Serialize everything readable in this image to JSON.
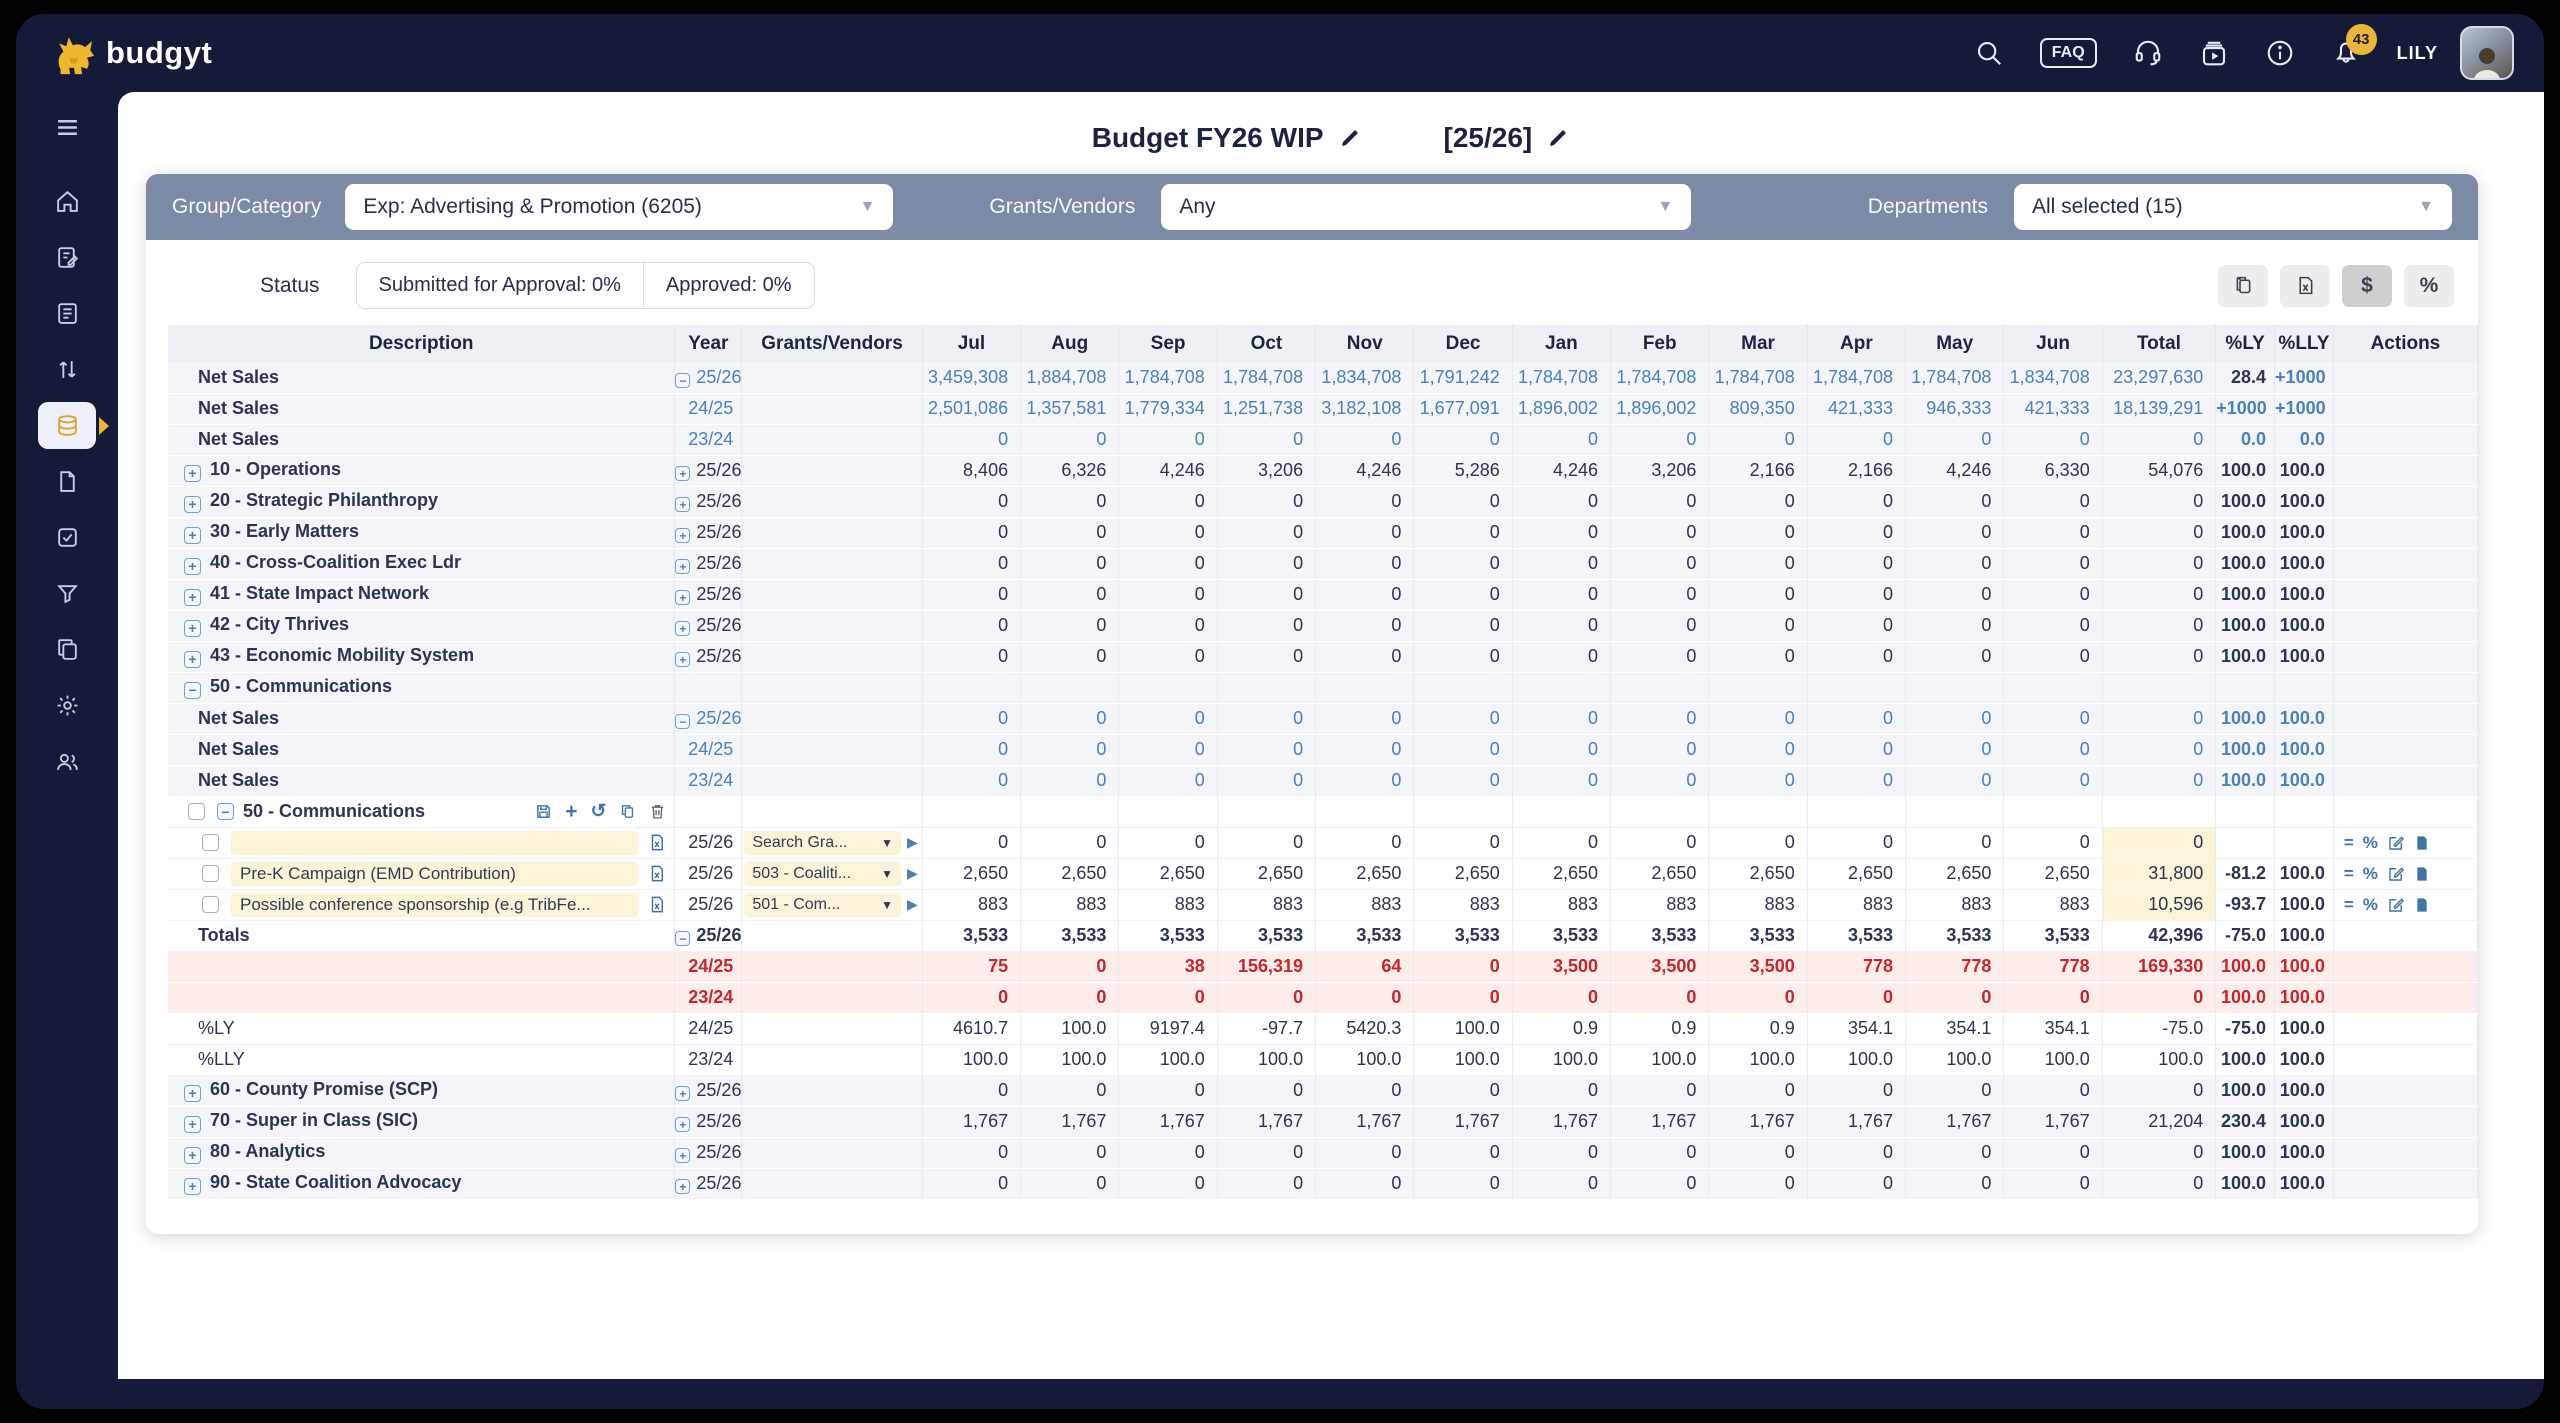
{
  "topbar": {
    "brand": "budgyt",
    "faq_label": "FAQ",
    "notification_count": "43",
    "user_name": "LILY"
  },
  "title": {
    "budget_name": "Budget FY26 WIP",
    "period_tag": "[25/26]"
  },
  "filters": {
    "group_category": {
      "label": "Group/Category",
      "value": "Exp: Advertising & Promotion (6205)"
    },
    "grants_vendors": {
      "label": "Grants/Vendors",
      "value": "Any"
    },
    "departments": {
      "label": "Departments",
      "value": "All selected (15)"
    }
  },
  "status": {
    "label": "Status",
    "submitted": "Submitted for Approval: 0%",
    "approved": "Approved: 0%"
  },
  "view_toggle": {
    "dollar": "$",
    "percent": "%"
  },
  "sidebar": {
    "icons": [
      "menu-icon",
      "home-icon",
      "form-edit-icon",
      "report-icon",
      "transfer-arrows-icon",
      "budgets-layers-icon",
      "file-icon",
      "approvals-check-icon",
      "filter-icon",
      "copy-docs-icon",
      "settings-gear-icon",
      "users-icon"
    ],
    "active": "budgets-layers-icon"
  },
  "colors": {
    "navy": "#151a38",
    "gold": "#eab53a",
    "filterbar": "#7d8aa6",
    "blue_value": "#4b80b8",
    "red_value": "#c1272d",
    "cream_input": "#fbf3d8"
  },
  "table": {
    "columns": [
      "Description",
      "Year",
      "Grants/Vendors",
      "Jul",
      "Aug",
      "Sep",
      "Oct",
      "Nov",
      "Dec",
      "Jan",
      "Feb",
      "Mar",
      "Apr",
      "May",
      "Jun",
      "Total",
      "%LY",
      "%LLY",
      "Actions"
    ],
    "rows": [
      {
        "kind": "netsales",
        "desc": "Net Sales",
        "year": "25/26",
        "year_expander": "minus",
        "year_color": "blue",
        "vals": [
          "3,459,308",
          "1,884,708",
          "1,784,708",
          "1,784,708",
          "1,834,708",
          "1,791,242",
          "1,784,708",
          "1,784,708",
          "1,784,708",
          "1,784,708",
          "1,784,708",
          "1,834,708"
        ],
        "total": "23,297,630",
        "ly": "28.4",
        "lly": "+1000",
        "val_color": "blue",
        "ly_color": "dark",
        "lly_color": "blue",
        "bg": "gray"
      },
      {
        "kind": "netsales",
        "desc": "Net Sales",
        "year": "24/25",
        "year_color": "blue",
        "vals": [
          "2,501,086",
          "1,357,581",
          "1,779,334",
          "1,251,738",
          "3,182,108",
          "1,677,091",
          "1,896,002",
          "1,896,002",
          "809,350",
          "421,333",
          "946,333",
          "421,333"
        ],
        "total": "18,139,291",
        "ly": "+1000",
        "lly": "+1000",
        "val_color": "blue",
        "ly_color": "blue",
        "lly_color": "blue",
        "bg": "gray"
      },
      {
        "kind": "netsales",
        "desc": "Net Sales",
        "year": "23/24",
        "year_color": "blue",
        "vals": [
          "0",
          "0",
          "0",
          "0",
          "0",
          "0",
          "0",
          "0",
          "0",
          "0",
          "0",
          "0"
        ],
        "total": "0",
        "ly": "0.0",
        "lly": "0.0",
        "val_color": "blue",
        "ly_color": "blue",
        "lly_color": "blue",
        "bg": "gray"
      },
      {
        "kind": "category",
        "desc": "10 - Operations",
        "expander": "plus",
        "year": "25/26",
        "year_expander": "plus",
        "year_color": "dark",
        "vals": [
          "8,406",
          "6,326",
          "4,246",
          "3,206",
          "4,246",
          "5,286",
          "4,246",
          "3,206",
          "2,166",
          "2,166",
          "4,246",
          "6,330"
        ],
        "total": "54,076",
        "ly": "100.0",
        "lly": "100.0",
        "val_color": "dark",
        "ly_color": "dark",
        "lly_color": "dark",
        "bg": "gray"
      },
      {
        "kind": "category",
        "desc": "20 - Strategic Philanthropy",
        "expander": "plus",
        "year": "25/26",
        "year_expander": "plus",
        "year_color": "dark",
        "vals": [
          "0",
          "0",
          "0",
          "0",
          "0",
          "0",
          "0",
          "0",
          "0",
          "0",
          "0",
          "0"
        ],
        "total": "0",
        "ly": "100.0",
        "lly": "100.0",
        "val_color": "dark",
        "ly_color": "dark",
        "lly_color": "dark",
        "bg": "gray"
      },
      {
        "kind": "category",
        "desc": "30 - Early Matters",
        "expander": "plus",
        "year": "25/26",
        "year_expander": "plus",
        "year_color": "dark",
        "vals": [
          "0",
          "0",
          "0",
          "0",
          "0",
          "0",
          "0",
          "0",
          "0",
          "0",
          "0",
          "0"
        ],
        "total": "0",
        "ly": "100.0",
        "lly": "100.0",
        "val_color": "dark",
        "ly_color": "dark",
        "lly_color": "dark",
        "bg": "gray"
      },
      {
        "kind": "category",
        "desc": "40 - Cross-Coalition Exec Ldr",
        "expander": "plus",
        "year": "25/26",
        "year_expander": "plus",
        "year_color": "dark",
        "vals": [
          "0",
          "0",
          "0",
          "0",
          "0",
          "0",
          "0",
          "0",
          "0",
          "0",
          "0",
          "0"
        ],
        "total": "0",
        "ly": "100.0",
        "lly": "100.0",
        "val_color": "dark",
        "ly_color": "dark",
        "lly_color": "dark",
        "bg": "gray"
      },
      {
        "kind": "category",
        "desc": "41 - State Impact Network",
        "expander": "plus",
        "year": "25/26",
        "year_expander": "plus",
        "year_color": "dark",
        "vals": [
          "0",
          "0",
          "0",
          "0",
          "0",
          "0",
          "0",
          "0",
          "0",
          "0",
          "0",
          "0"
        ],
        "total": "0",
        "ly": "100.0",
        "lly": "100.0",
        "val_color": "dark",
        "ly_color": "dark",
        "lly_color": "dark",
        "bg": "gray"
      },
      {
        "kind": "category",
        "desc": "42 - City Thrives",
        "expander": "plus",
        "year": "25/26",
        "year_expander": "plus",
        "year_color": "dark",
        "vals": [
          "0",
          "0",
          "0",
          "0",
          "0",
          "0",
          "0",
          "0",
          "0",
          "0",
          "0",
          "0"
        ],
        "total": "0",
        "ly": "100.0",
        "lly": "100.0",
        "val_color": "dark",
        "ly_color": "dark",
        "lly_color": "dark",
        "bg": "gray"
      },
      {
        "kind": "category",
        "desc": "43 - Economic Mobility System",
        "expander": "plus",
        "year": "25/26",
        "year_expander": "plus",
        "year_color": "dark",
        "vals": [
          "0",
          "0",
          "0",
          "0",
          "0",
          "0",
          "0",
          "0",
          "0",
          "0",
          "0",
          "0"
        ],
        "total": "0",
        "ly": "100.0",
        "lly": "100.0",
        "val_color": "dark",
        "ly_color": "dark",
        "lly_color": "dark",
        "bg": "gray"
      },
      {
        "kind": "group-open",
        "desc": "50 - Communications",
        "expander": "minus",
        "bg": "gray"
      },
      {
        "kind": "netsales",
        "desc": "Net Sales",
        "year": "25/26",
        "year_expander": "minus",
        "year_color": "blue",
        "vals": [
          "0",
          "0",
          "0",
          "0",
          "0",
          "0",
          "0",
          "0",
          "0",
          "0",
          "0",
          "0"
        ],
        "total": "0",
        "ly": "100.0",
        "lly": "100.0",
        "val_color": "blue",
        "ly_color": "blue",
        "lly_color": "blue",
        "bg": "gray"
      },
      {
        "kind": "netsales",
        "desc": "Net Sales",
        "year": "24/25",
        "year_color": "blue",
        "vals": [
          "0",
          "0",
          "0",
          "0",
          "0",
          "0",
          "0",
          "0",
          "0",
          "0",
          "0",
          "0"
        ],
        "total": "0",
        "ly": "100.0",
        "lly": "100.0",
        "val_color": "blue",
        "ly_color": "blue",
        "lly_color": "blue",
        "bg": "gray"
      },
      {
        "kind": "netsales",
        "desc": "Net Sales",
        "year": "23/24",
        "year_color": "blue",
        "vals": [
          "0",
          "0",
          "0",
          "0",
          "0",
          "0",
          "0",
          "0",
          "0",
          "0",
          "0",
          "0"
        ],
        "total": "0",
        "ly": "100.0",
        "lly": "100.0",
        "val_color": "blue",
        "ly_color": "blue",
        "lly_color": "blue",
        "bg": "gray"
      },
      {
        "kind": "group-header",
        "desc": "50 - Communications",
        "expander": "minus",
        "checkbox": true,
        "toolbar": [
          "save-icon",
          "add-line-icon",
          "undo-icon",
          "paste-icon",
          "trash-icon"
        ],
        "bg": "white"
      },
      {
        "kind": "detail",
        "checkbox": true,
        "input": "",
        "grants": "Search Gra...",
        "year": "25/26",
        "vals": [
          "0",
          "0",
          "0",
          "0",
          "0",
          "0",
          "0",
          "0",
          "0",
          "0",
          "0",
          "0"
        ],
        "total": "0",
        "ly": "",
        "lly": "",
        "val_color": "dark",
        "ly_color": "dark",
        "lly_color": "dark",
        "bg": "white",
        "actions": true
      },
      {
        "kind": "detail",
        "checkbox": true,
        "input": "Pre-K Campaign (EMD Contribution)",
        "grants": "503 - Coaliti...",
        "year": "25/26",
        "vals": [
          "2,650",
          "2,650",
          "2,650",
          "2,650",
          "2,650",
          "2,650",
          "2,650",
          "2,650",
          "2,650",
          "2,650",
          "2,650",
          "2,650"
        ],
        "total": "31,800",
        "ly": "-81.2",
        "lly": "100.0",
        "val_color": "dark",
        "ly_color": "dark",
        "lly_color": "dark",
        "bg": "white",
        "actions": true
      },
      {
        "kind": "detail",
        "checkbox": true,
        "input": "Possible conference sponsorship (e.g TribFe...",
        "grants": "501 - Com...",
        "year": "25/26",
        "vals": [
          "883",
          "883",
          "883",
          "883",
          "883",
          "883",
          "883",
          "883",
          "883",
          "883",
          "883",
          "883"
        ],
        "total": "10,596",
        "ly": "-93.7",
        "lly": "100.0",
        "val_color": "dark",
        "ly_color": "dark",
        "lly_color": "dark",
        "bg": "white",
        "actions": true
      },
      {
        "kind": "totals",
        "desc": "Totals",
        "year": "25/26",
        "year_expander": "minus",
        "year_color": "dark",
        "vals": [
          "3,533",
          "3,533",
          "3,533",
          "3,533",
          "3,533",
          "3,533",
          "3,533",
          "3,533",
          "3,533",
          "3,533",
          "3,533",
          "3,533"
        ],
        "total": "42,396",
        "ly": "-75.0",
        "lly": "100.0",
        "val_color": "dark",
        "val_bold": true,
        "ly_color": "dark",
        "lly_color": "dark",
        "bg": "white"
      },
      {
        "kind": "red",
        "desc": "",
        "year": "24/25",
        "year_color": "red",
        "vals": [
          "75",
          "0",
          "38",
          "156,319",
          "64",
          "0",
          "3,500",
          "3,500",
          "3,500",
          "778",
          "778",
          "778"
        ],
        "total": "169,330",
        "ly": "100.0",
        "lly": "100.0",
        "val_color": "red",
        "val_bold": true,
        "ly_color": "red",
        "lly_color": "red",
        "bg": "pink"
      },
      {
        "kind": "red",
        "desc": "",
        "year": "23/24",
        "year_color": "red",
        "vals": [
          "0",
          "0",
          "0",
          "0",
          "0",
          "0",
          "0",
          "0",
          "0",
          "0",
          "0",
          "0"
        ],
        "total": "0",
        "ly": "100.0",
        "lly": "100.0",
        "val_color": "red",
        "val_bold": true,
        "ly_color": "red",
        "lly_color": "red",
        "bg": "pink"
      },
      {
        "kind": "pct",
        "desc": "%LY",
        "year": "24/25",
        "year_color": "dark",
        "vals": [
          "4610.7",
          "100.0",
          "9197.4",
          "-97.7",
          "5420.3",
          "100.0",
          "0.9",
          "0.9",
          "0.9",
          "354.1",
          "354.1",
          "354.1"
        ],
        "total": "-75.0",
        "ly": "-75.0",
        "lly": "100.0",
        "val_color": "dark",
        "ly_color": "dark",
        "lly_color": "dark",
        "bg": "white"
      },
      {
        "kind": "pct",
        "desc": "%LLY",
        "year": "23/24",
        "year_color": "dark",
        "vals": [
          "100.0",
          "100.0",
          "100.0",
          "100.0",
          "100.0",
          "100.0",
          "100.0",
          "100.0",
          "100.0",
          "100.0",
          "100.0",
          "100.0"
        ],
        "total": "100.0",
        "ly": "100.0",
        "lly": "100.0",
        "val_color": "dark",
        "ly_color": "dark",
        "lly_color": "dark",
        "bg": "white"
      },
      {
        "kind": "category",
        "desc": "60 - County Promise (SCP)",
        "expander": "plus",
        "year": "25/26",
        "year_expander": "plus",
        "year_color": "dark",
        "vals": [
          "0",
          "0",
          "0",
          "0",
          "0",
          "0",
          "0",
          "0",
          "0",
          "0",
          "0",
          "0"
        ],
        "total": "0",
        "ly": "100.0",
        "lly": "100.0",
        "val_color": "dark",
        "ly_color": "dark",
        "lly_color": "dark",
        "bg": "gray"
      },
      {
        "kind": "category",
        "desc": "70 - Super in Class (SIC)",
        "expander": "plus",
        "year": "25/26",
        "year_expander": "plus",
        "year_color": "dark",
        "vals": [
          "1,767",
          "1,767",
          "1,767",
          "1,767",
          "1,767",
          "1,767",
          "1,767",
          "1,767",
          "1,767",
          "1,767",
          "1,767",
          "1,767"
        ],
        "total": "21,204",
        "ly": "230.4",
        "lly": "100.0",
        "val_color": "dark",
        "ly_color": "dark",
        "lly_color": "dark",
        "bg": "gray"
      },
      {
        "kind": "category",
        "desc": "80 - Analytics",
        "expander": "plus",
        "year": "25/26",
        "year_expander": "plus",
        "year_color": "dark",
        "vals": [
          "0",
          "0",
          "0",
          "0",
          "0",
          "0",
          "0",
          "0",
          "0",
          "0",
          "0",
          "0"
        ],
        "total": "0",
        "ly": "100.0",
        "lly": "100.0",
        "val_color": "dark",
        "ly_color": "dark",
        "lly_color": "dark",
        "bg": "gray"
      },
      {
        "kind": "category",
        "desc": "90 - State Coalition Advocacy",
        "expander": "plus",
        "year": "25/26",
        "year_expander": "plus",
        "year_color": "dark",
        "vals": [
          "0",
          "0",
          "0",
          "0",
          "0",
          "0",
          "0",
          "0",
          "0",
          "0",
          "0",
          "0"
        ],
        "total": "0",
        "ly": "100.0",
        "lly": "100.0",
        "val_color": "dark",
        "ly_color": "dark",
        "lly_color": "dark",
        "bg": "gray"
      }
    ]
  }
}
